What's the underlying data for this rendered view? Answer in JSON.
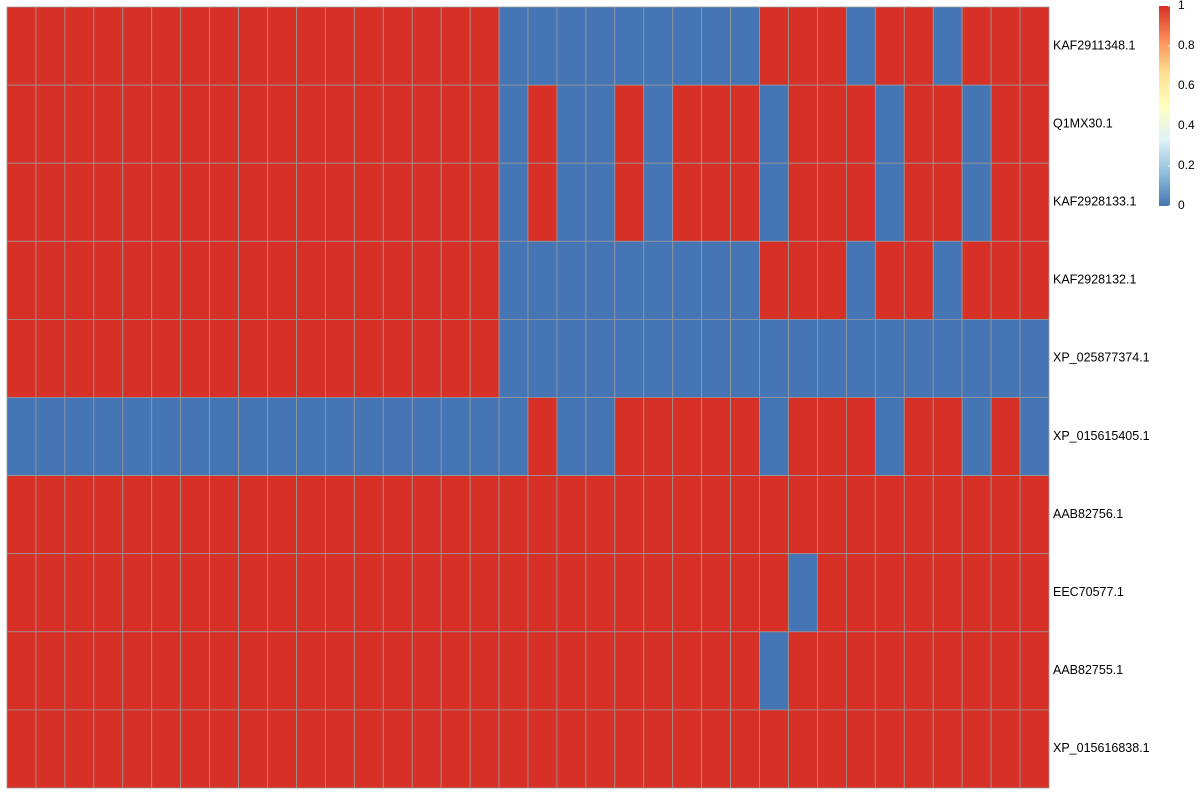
{
  "chart_data": {
    "type": "heatmap",
    "rows": [
      "KAF2911348.1",
      "Q1MX30.1",
      "KAF2928133.1",
      "KAF2928132.1",
      "XP_025877374.1",
      "XP_015615405.1",
      "AAB82756.1",
      "EEC70577.1",
      "AAB82755.1",
      "XP_015616838.1"
    ],
    "n_columns": 36,
    "values": [
      [
        1,
        1,
        1,
        1,
        1,
        1,
        1,
        1,
        1,
        1,
        1,
        1,
        1,
        1,
        1,
        1,
        1,
        0,
        0,
        0,
        0,
        0,
        0,
        0,
        0,
        0,
        1,
        1,
        1,
        0,
        1,
        1,
        0,
        1,
        1,
        1
      ],
      [
        1,
        1,
        1,
        1,
        1,
        1,
        1,
        1,
        1,
        1,
        1,
        1,
        1,
        1,
        1,
        1,
        1,
        0,
        1,
        0,
        0,
        1,
        0,
        1,
        1,
        1,
        0,
        1,
        1,
        1,
        0,
        1,
        1,
        0,
        1,
        1
      ],
      [
        1,
        1,
        1,
        1,
        1,
        1,
        1,
        1,
        1,
        1,
        1,
        1,
        1,
        1,
        1,
        1,
        1,
        0,
        1,
        0,
        0,
        1,
        0,
        1,
        1,
        1,
        0,
        1,
        1,
        1,
        0,
        1,
        1,
        0,
        1,
        1
      ],
      [
        1,
        1,
        1,
        1,
        1,
        1,
        1,
        1,
        1,
        1,
        1,
        1,
        1,
        1,
        1,
        1,
        1,
        0,
        0,
        0,
        0,
        0,
        0,
        0,
        0,
        0,
        1,
        1,
        1,
        0,
        1,
        1,
        0,
        1,
        1,
        1
      ],
      [
        1,
        1,
        1,
        1,
        1,
        1,
        1,
        1,
        1,
        1,
        1,
        1,
        1,
        1,
        1,
        1,
        1,
        0,
        0,
        0,
        0,
        0,
        0,
        0,
        0,
        0,
        0,
        0,
        0,
        0,
        0,
        0,
        0,
        0,
        0,
        0
      ],
      [
        0,
        0,
        0,
        0,
        0,
        0,
        0,
        0,
        0,
        0,
        0,
        0,
        0,
        0,
        0,
        0,
        0,
        0,
        1,
        0,
        0,
        1,
        1,
        1,
        1,
        1,
        0,
        1,
        1,
        1,
        0,
        1,
        1,
        0,
        1,
        0
      ],
      [
        1,
        1,
        1,
        1,
        1,
        1,
        1,
        1,
        1,
        1,
        1,
        1,
        1,
        1,
        1,
        1,
        1,
        1,
        1,
        1,
        1,
        1,
        1,
        1,
        1,
        1,
        1,
        1,
        1,
        1,
        1,
        1,
        1,
        1,
        1,
        1
      ],
      [
        1,
        1,
        1,
        1,
        1,
        1,
        1,
        1,
        1,
        1,
        1,
        1,
        1,
        1,
        1,
        1,
        1,
        1,
        1,
        1,
        1,
        1,
        1,
        1,
        1,
        1,
        1,
        0,
        1,
        1,
        1,
        1,
        1,
        1,
        1,
        1
      ],
      [
        1,
        1,
        1,
        1,
        1,
        1,
        1,
        1,
        1,
        1,
        1,
        1,
        1,
        1,
        1,
        1,
        1,
        1,
        1,
        1,
        1,
        1,
        1,
        1,
        1,
        1,
        0,
        1,
        1,
        1,
        1,
        1,
        1,
        1,
        1,
        1
      ],
      [
        1,
        1,
        1,
        1,
        1,
        1,
        1,
        1,
        1,
        1,
        1,
        1,
        1,
        1,
        1,
        1,
        1,
        1,
        1,
        1,
        1,
        1,
        1,
        1,
        1,
        1,
        1,
        1,
        1,
        1,
        1,
        1,
        1,
        1,
        1,
        1
      ]
    ],
    "value_range": [
      0,
      1
    ],
    "colorscale": [
      "#4575b4",
      "#91bfdb",
      "#e0f3f8",
      "#ffffbf",
      "#fee090",
      "#fc8d59",
      "#d73027"
    ],
    "legend": {
      "position": "top-right",
      "ticks": [
        "1",
        "0.8",
        "0.6",
        "0.4",
        "0.2",
        "0"
      ],
      "tick_values": [
        1,
        0.8,
        0.6,
        0.4,
        0.2,
        0
      ]
    },
    "cell_border_color": "#999999",
    "title": "",
    "xlabel": "",
    "ylabel": ""
  }
}
